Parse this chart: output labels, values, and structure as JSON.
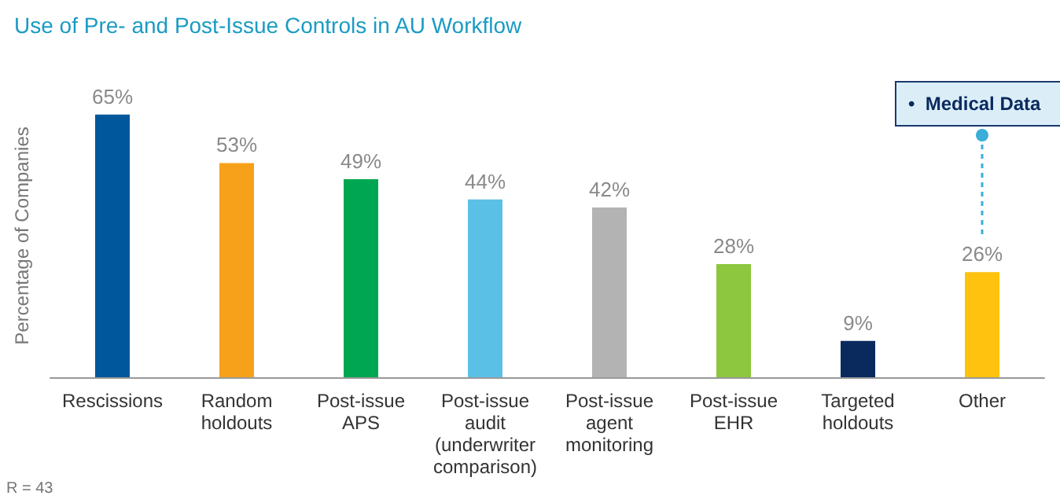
{
  "chart_data": {
    "type": "bar",
    "title": "Use of Pre- and Post-Issue Controls in AU Workflow",
    "ylabel": "Percentage of Companies",
    "categories": [
      "Rescissions",
      "Random\nholdouts",
      "Post-issue\nAPS",
      "Post-issue\naudit\n(underwriter\ncomparison)",
      "Post-issue\nagent\nmonitoring",
      "Post-issue\nEHR",
      "Targeted\nholdouts",
      "Other"
    ],
    "values": [
      65,
      53,
      49,
      44,
      42,
      28,
      9,
      26
    ],
    "colors": [
      "#00579c",
      "#f7a11a",
      "#00a651",
      "#5bc0e6",
      "#b3b3b3",
      "#8dc63f",
      "#0a2a5e",
      "#ffc20e"
    ],
    "value_labels": [
      "65%",
      "53%",
      "49%",
      "44%",
      "42%",
      "28%",
      "9%",
      "26%"
    ],
    "annotations": [
      "•  Medical Data",
      "R = 43"
    ],
    "grid": false
  }
}
